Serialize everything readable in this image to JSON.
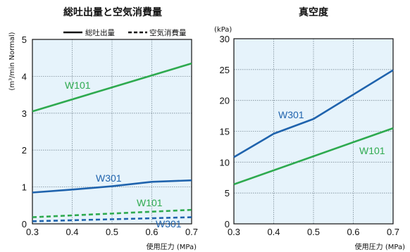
{
  "chart_data": [
    {
      "type": "line",
      "title": "総吐出量と空気消費量",
      "xlabel": "使用圧力 (MPa)",
      "ylabel": "(m³/min Normal)",
      "x": [
        0.3,
        0.7
      ],
      "xticks": [
        "0.3",
        "0.4",
        "0.5",
        "0.6",
        "0.7"
      ],
      "yticks": [
        "0",
        "1",
        "2",
        "3",
        "4",
        "5"
      ],
      "xlim": [
        0.3,
        0.7
      ],
      "ylim": [
        0,
        5
      ],
      "grid": true,
      "legend": {
        "solid": "総吐出量",
        "dashed": "空気消費量",
        "position": "top-right"
      },
      "series": [
        {
          "name": "W101",
          "style": "solid",
          "color": "#2eaa4f",
          "x": [
            0.3,
            0.7
          ],
          "values": [
            3.05,
            4.35
          ]
        },
        {
          "name": "W301",
          "style": "solid",
          "color": "#1f63ad",
          "x": [
            0.3,
            0.4,
            0.5,
            0.6,
            0.7
          ],
          "values": [
            0.85,
            0.93,
            1.02,
            1.14,
            1.18
          ]
        },
        {
          "name": "W101",
          "style": "dashed",
          "color": "#2eaa4f",
          "x": [
            0.3,
            0.7
          ],
          "values": [
            0.18,
            0.38
          ]
        },
        {
          "name": "W301",
          "style": "dashed",
          "color": "#1f63ad",
          "x": [
            0.3,
            0.7
          ],
          "values": [
            0.07,
            0.18
          ]
        }
      ]
    },
    {
      "type": "line",
      "title": "真空度",
      "xlabel": "使用圧力 (MPa)",
      "ylabel": "(kPa)",
      "x": [
        0.3,
        0.7
      ],
      "xticks": [
        "0.3",
        "0.4",
        "0.5",
        "0.6",
        "0.7"
      ],
      "yticks": [
        "0",
        "5",
        "10",
        "15",
        "20",
        "25",
        "30"
      ],
      "xlim": [
        0.3,
        0.7
      ],
      "ylim": [
        0,
        30
      ],
      "grid": true,
      "series": [
        {
          "name": "W301",
          "style": "solid",
          "color": "#1f63ad",
          "x": [
            0.3,
            0.4,
            0.5,
            0.7
          ],
          "values": [
            10.8,
            14.6,
            17.0,
            24.9
          ]
        },
        {
          "name": "W101",
          "style": "solid",
          "color": "#2eaa4f",
          "x": [
            0.3,
            0.7
          ],
          "values": [
            6.4,
            15.5
          ]
        }
      ]
    }
  ]
}
